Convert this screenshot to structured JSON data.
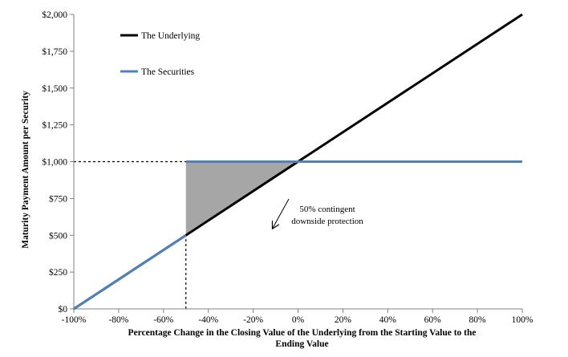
{
  "chart_data": {
    "type": "line",
    "title": "",
    "xlabel": [
      "Percentage Change in the Closing Value of the Underlying from the Starting Value to the",
      "Ending Value"
    ],
    "ylabel": "Maturity Payment Amount per Security",
    "xlim": [
      -100,
      100
    ],
    "ylim": [
      0,
      2000
    ],
    "x_ticks": [
      -100,
      -80,
      -60,
      -40,
      -20,
      0,
      20,
      40,
      60,
      80,
      100
    ],
    "x_tick_labels": [
      "-100%",
      "-80%",
      "-60%",
      "-40%",
      "-20%",
      "0%",
      "20%",
      "40%",
      "60%",
      "80%",
      "100%"
    ],
    "y_ticks": [
      0,
      250,
      500,
      750,
      1000,
      1250,
      1500,
      1750,
      2000
    ],
    "y_tick_labels": [
      "$0",
      "$250",
      "$500",
      "$750",
      "$1,000",
      "$1,250",
      "$1,500",
      "$1,750",
      "$2,000"
    ],
    "grid": false,
    "legend_position": "top-left",
    "series": [
      {
        "name": "The Underlying",
        "color": "#000000",
        "x": [
          -100,
          100
        ],
        "y": [
          0,
          2000
        ]
      },
      {
        "name": "The Securities",
        "color": "#4f81bd",
        "x": [
          -100,
          -50,
          -50,
          100
        ],
        "y": [
          0,
          500,
          1000,
          1000
        ]
      }
    ],
    "shaded_region": {
      "color": "#a6a6a6",
      "points": [
        [
          -50,
          500
        ],
        [
          -50,
          1000
        ],
        [
          0,
          1000
        ]
      ]
    },
    "reference_lines": [
      {
        "style": "dashed",
        "x": [
          -100,
          -50
        ],
        "y": [
          1000,
          1000
        ]
      },
      {
        "style": "dashed",
        "x": [
          -50,
          -50
        ],
        "y": [
          0,
          500
        ]
      }
    ],
    "annotations": [
      {
        "text": [
          "50% contingent",
          "downside protection"
        ],
        "arrow_to": [
          -12,
          560
        ]
      }
    ]
  }
}
